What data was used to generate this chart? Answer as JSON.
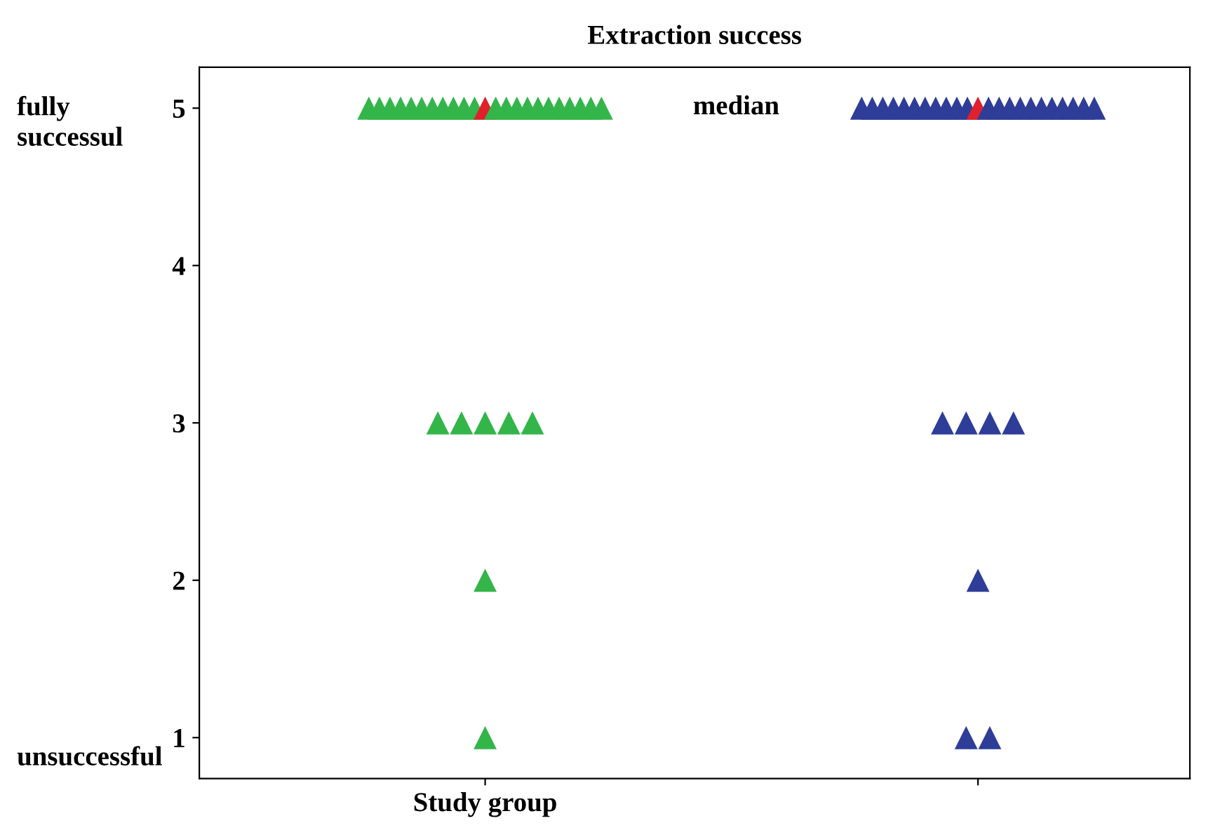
{
  "chart_data": {
    "type": "scatter",
    "title": "Extraction success",
    "marker": "triangle",
    "grid": false,
    "legend": false,
    "categories": [
      "Study group",
      null
    ],
    "ylim": [
      0.74,
      5.26
    ],
    "yticks": [
      1,
      2,
      3,
      4,
      5
    ],
    "series": [
      {
        "colors": [
          "#33b54a",
          "#2e3d98"
        ],
        "values": [
          5,
          5
        ]
      },
      {
        "colors": [
          "#33b54a",
          "#2e3d98"
        ],
        "values": [
          5,
          5
        ]
      },
      {
        "colors": [
          "#33b54a",
          "#2e3d98"
        ],
        "values": [
          5,
          5
        ]
      },
      {
        "colors": [
          "#33b54a",
          "#2e3d98"
        ],
        "values": [
          5,
          5
        ]
      },
      {
        "colors": [
          "#33b54a",
          "#2e3d98"
        ],
        "values": [
          5,
          5
        ]
      },
      {
        "colors": [
          "#33b54a",
          "#2e3d98"
        ],
        "values": [
          5,
          5
        ]
      },
      {
        "colors": [
          "#33b54a",
          "#2e3d98"
        ],
        "values": [
          5,
          5
        ]
      },
      {
        "colors": [
          "#33b54a",
          "#2e3d98"
        ],
        "values": [
          5,
          5
        ]
      },
      {
        "colors": [
          "#33b54a",
          "#2e3d98"
        ],
        "values": [
          5,
          5
        ]
      },
      {
        "colors": [
          "#33b54a",
          "#2e3d98"
        ],
        "values": [
          5,
          5
        ]
      },
      {
        "colors": [
          "#33b54a",
          "#2e3d98"
        ],
        "values": [
          5,
          5
        ]
      },
      {
        "colors": [
          "#e0202a",
          "#e0202a"
        ],
        "values": [
          5,
          5
        ]
      },
      {
        "colors": [
          "#33b54a",
          "#2e3d98"
        ],
        "values": [
          5,
          5
        ]
      },
      {
        "colors": [
          "#33b54a",
          "#2e3d98"
        ],
        "values": [
          5,
          5
        ]
      },
      {
        "colors": [
          "#33b54a",
          "#2e3d98"
        ],
        "values": [
          5,
          5
        ]
      },
      {
        "colors": [
          "#33b54a",
          "#2e3d98"
        ],
        "values": [
          5,
          5
        ]
      },
      {
        "colors": [
          "#33b54a",
          "#2e3d98"
        ],
        "values": [
          5,
          5
        ]
      },
      {
        "colors": [
          "#33b54a",
          "#2e3d98"
        ],
        "values": [
          5,
          5
        ]
      },
      {
        "colors": [
          "#33b54a",
          "#2e3d98"
        ],
        "values": [
          5,
          5
        ]
      },
      {
        "colors": [
          "#33b54a",
          "#2e3d98"
        ],
        "values": [
          5,
          5
        ]
      },
      {
        "colors": [
          "#33b54a",
          "#2e3d98"
        ],
        "values": [
          5,
          5
        ]
      },
      {
        "colors": [
          "#33b54a",
          "#2e3d98"
        ],
        "values": [
          5,
          5
        ]
      },
      {
        "colors": [
          "#33b54a",
          "#2e3d98"
        ],
        "values": [
          5,
          5
        ]
      },
      {
        "colors": [
          "#33b54a",
          "#2e3d98"
        ],
        "values": [
          3,
          3
        ]
      },
      {
        "colors": [
          "#33b54a",
          "#2e3d98"
        ],
        "values": [
          3,
          3
        ]
      },
      {
        "colors": [
          "#33b54a",
          "#2e3d98"
        ],
        "values": [
          3,
          3
        ]
      },
      {
        "colors": [
          "#33b54a",
          "#2e3d98"
        ],
        "values": [
          3,
          3
        ]
      },
      {
        "colors": [
          "#33b54a",
          "#2e3d98"
        ],
        "values": [
          3,
          2
        ]
      },
      {
        "colors": [
          "#33b54a",
          "#2e3d98"
        ],
        "values": [
          2,
          1
        ]
      },
      {
        "colors": [
          "#33b54a",
          "#2e3d98"
        ],
        "values": [
          1,
          1
        ]
      }
    ],
    "annotations": [
      "median",
      "fully\nsuccessul",
      "unsuccessful"
    ]
  }
}
